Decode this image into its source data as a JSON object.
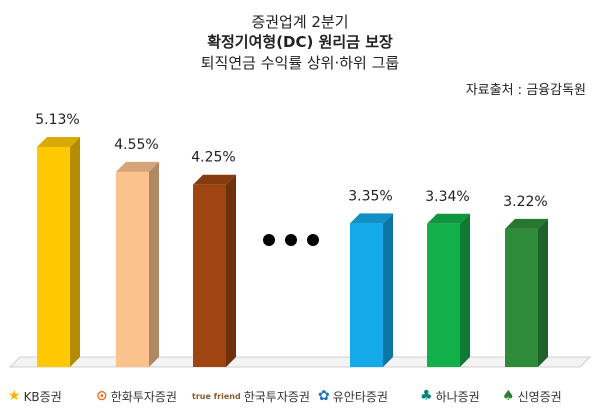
{
  "header": {
    "line1": "증권업계 2분기",
    "line2": "확정기여형(DC) 원리금 보장",
    "line3": "퇴직연금 수익률 상위·하위 그룹",
    "source": "자료출처 : 금융감독원"
  },
  "chart_data": {
    "type": "bar",
    "categories": [
      "KB증권",
      "한화투자증권",
      "한국투자증권",
      "유안타증권",
      "하나증권",
      "신영증권"
    ],
    "values": [
      5.13,
      4.55,
      4.25,
      3.35,
      3.34,
      3.22
    ],
    "value_labels": [
      "5.13%",
      "4.55%",
      "4.25%",
      "3.35%",
      "3.34%",
      "3.22%"
    ],
    "colors": [
      "#FFC800",
      "#FBC28E",
      "#9E4511",
      "#14A9E8",
      "#12B04A",
      "#2E8B3A"
    ],
    "gap_marker": "•••",
    "unit": "%",
    "ylim": [
      0,
      5.13
    ],
    "grid": false,
    "legend": "none",
    "bar_style": "3d"
  },
  "logos": [
    {
      "text": "KB증권",
      "mark": "★",
      "color": "#F2B400"
    },
    {
      "text": "한화투자증권",
      "mark": "⊙",
      "color": "#E8701E"
    },
    {
      "text": "한국투자증권",
      "mark": "true friend",
      "color": "#8A5A2B"
    },
    {
      "text": "유안타증권",
      "mark": "✿",
      "color": "#1F73B7"
    },
    {
      "text": "하나증권",
      "mark": "♣",
      "color": "#00857A"
    },
    {
      "text": "신영증권",
      "mark": "♠",
      "color": "#2E7D32"
    }
  ]
}
